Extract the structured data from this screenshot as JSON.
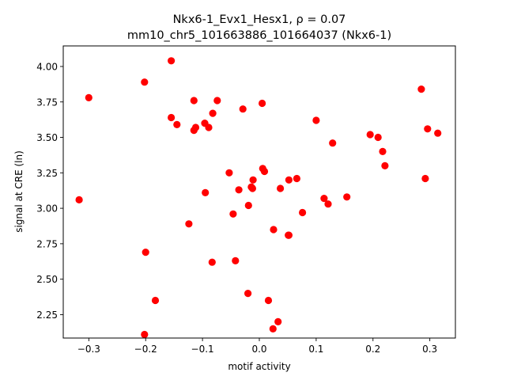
{
  "chart_data": {
    "type": "scatter",
    "title": "Nkx6-1_Evx1_Hesx1, ρ = 0.07",
    "subtitle": "mm10_chr5_101663886_101664037 (Nkx6-1)",
    "xlabel": "motif activity",
    "ylabel": "signal at CRE (ln)",
    "xlim": [
      -0.345,
      0.345
    ],
    "ylim": [
      2.085,
      4.145
    ],
    "xticks": [
      -0.3,
      -0.2,
      -0.1,
      0.0,
      0.1,
      0.2,
      0.3
    ],
    "xtick_labels": [
      "−0.3",
      "−0.2",
      "−0.1",
      "0.0",
      "0.1",
      "0.2",
      "0.3"
    ],
    "yticks": [
      2.25,
      2.5,
      2.75,
      3.0,
      3.25,
      3.5,
      3.75,
      4.0
    ],
    "ytick_labels": [
      "2.25",
      "2.50",
      "2.75",
      "3.00",
      "3.25",
      "3.50",
      "3.75",
      "4.00"
    ],
    "grid": false,
    "marker_color": "#ff0000",
    "points": [
      {
        "x": -0.317,
        "y": 3.06
      },
      {
        "x": -0.3,
        "y": 3.78
      },
      {
        "x": -0.202,
        "y": 3.89
      },
      {
        "x": -0.2,
        "y": 2.69
      },
      {
        "x": -0.202,
        "y": 2.11
      },
      {
        "x": -0.183,
        "y": 2.35
      },
      {
        "x": -0.155,
        "y": 4.04
      },
      {
        "x": -0.155,
        "y": 3.64
      },
      {
        "x": -0.145,
        "y": 3.59
      },
      {
        "x": -0.124,
        "y": 2.89
      },
      {
        "x": -0.115,
        "y": 3.76
      },
      {
        "x": -0.115,
        "y": 3.55
      },
      {
        "x": -0.112,
        "y": 3.57
      },
      {
        "x": -0.096,
        "y": 3.6
      },
      {
        "x": -0.095,
        "y": 3.11
      },
      {
        "x": -0.089,
        "y": 3.57
      },
      {
        "x": -0.082,
        "y": 3.67
      },
      {
        "x": -0.083,
        "y": 2.62
      },
      {
        "x": -0.074,
        "y": 3.76
      },
      {
        "x": -0.053,
        "y": 3.25
      },
      {
        "x": -0.046,
        "y": 2.96
      },
      {
        "x": -0.042,
        "y": 2.63
      },
      {
        "x": -0.036,
        "y": 3.13
      },
      {
        "x": -0.029,
        "y": 3.7
      },
      {
        "x": -0.02,
        "y": 2.4
      },
      {
        "x": -0.019,
        "y": 3.02
      },
      {
        "x": -0.014,
        "y": 3.15
      },
      {
        "x": -0.012,
        "y": 3.14
      },
      {
        "x": -0.011,
        "y": 3.2
      },
      {
        "x": 0.005,
        "y": 3.74
      },
      {
        "x": 0.006,
        "y": 3.28
      },
      {
        "x": 0.009,
        "y": 3.26
      },
      {
        "x": 0.016,
        "y": 2.35
      },
      {
        "x": 0.024,
        "y": 2.15
      },
      {
        "x": 0.025,
        "y": 2.85
      },
      {
        "x": 0.033,
        "y": 2.2
      },
      {
        "x": 0.037,
        "y": 3.14
      },
      {
        "x": 0.051,
        "y": 2.81
      },
      {
        "x": 0.052,
        "y": 2.81
      },
      {
        "x": 0.052,
        "y": 3.2
      },
      {
        "x": 0.066,
        "y": 3.21
      },
      {
        "x": 0.076,
        "y": 2.97
      },
      {
        "x": 0.1,
        "y": 3.62
      },
      {
        "x": 0.114,
        "y": 3.07
      },
      {
        "x": 0.121,
        "y": 3.03
      },
      {
        "x": 0.129,
        "y": 3.46
      },
      {
        "x": 0.154,
        "y": 3.08
      },
      {
        "x": 0.195,
        "y": 3.52
      },
      {
        "x": 0.209,
        "y": 3.5
      },
      {
        "x": 0.217,
        "y": 3.4
      },
      {
        "x": 0.221,
        "y": 3.3
      },
      {
        "x": 0.285,
        "y": 3.84
      },
      {
        "x": 0.292,
        "y": 3.21
      },
      {
        "x": 0.296,
        "y": 3.56
      },
      {
        "x": 0.314,
        "y": 3.53
      }
    ]
  }
}
